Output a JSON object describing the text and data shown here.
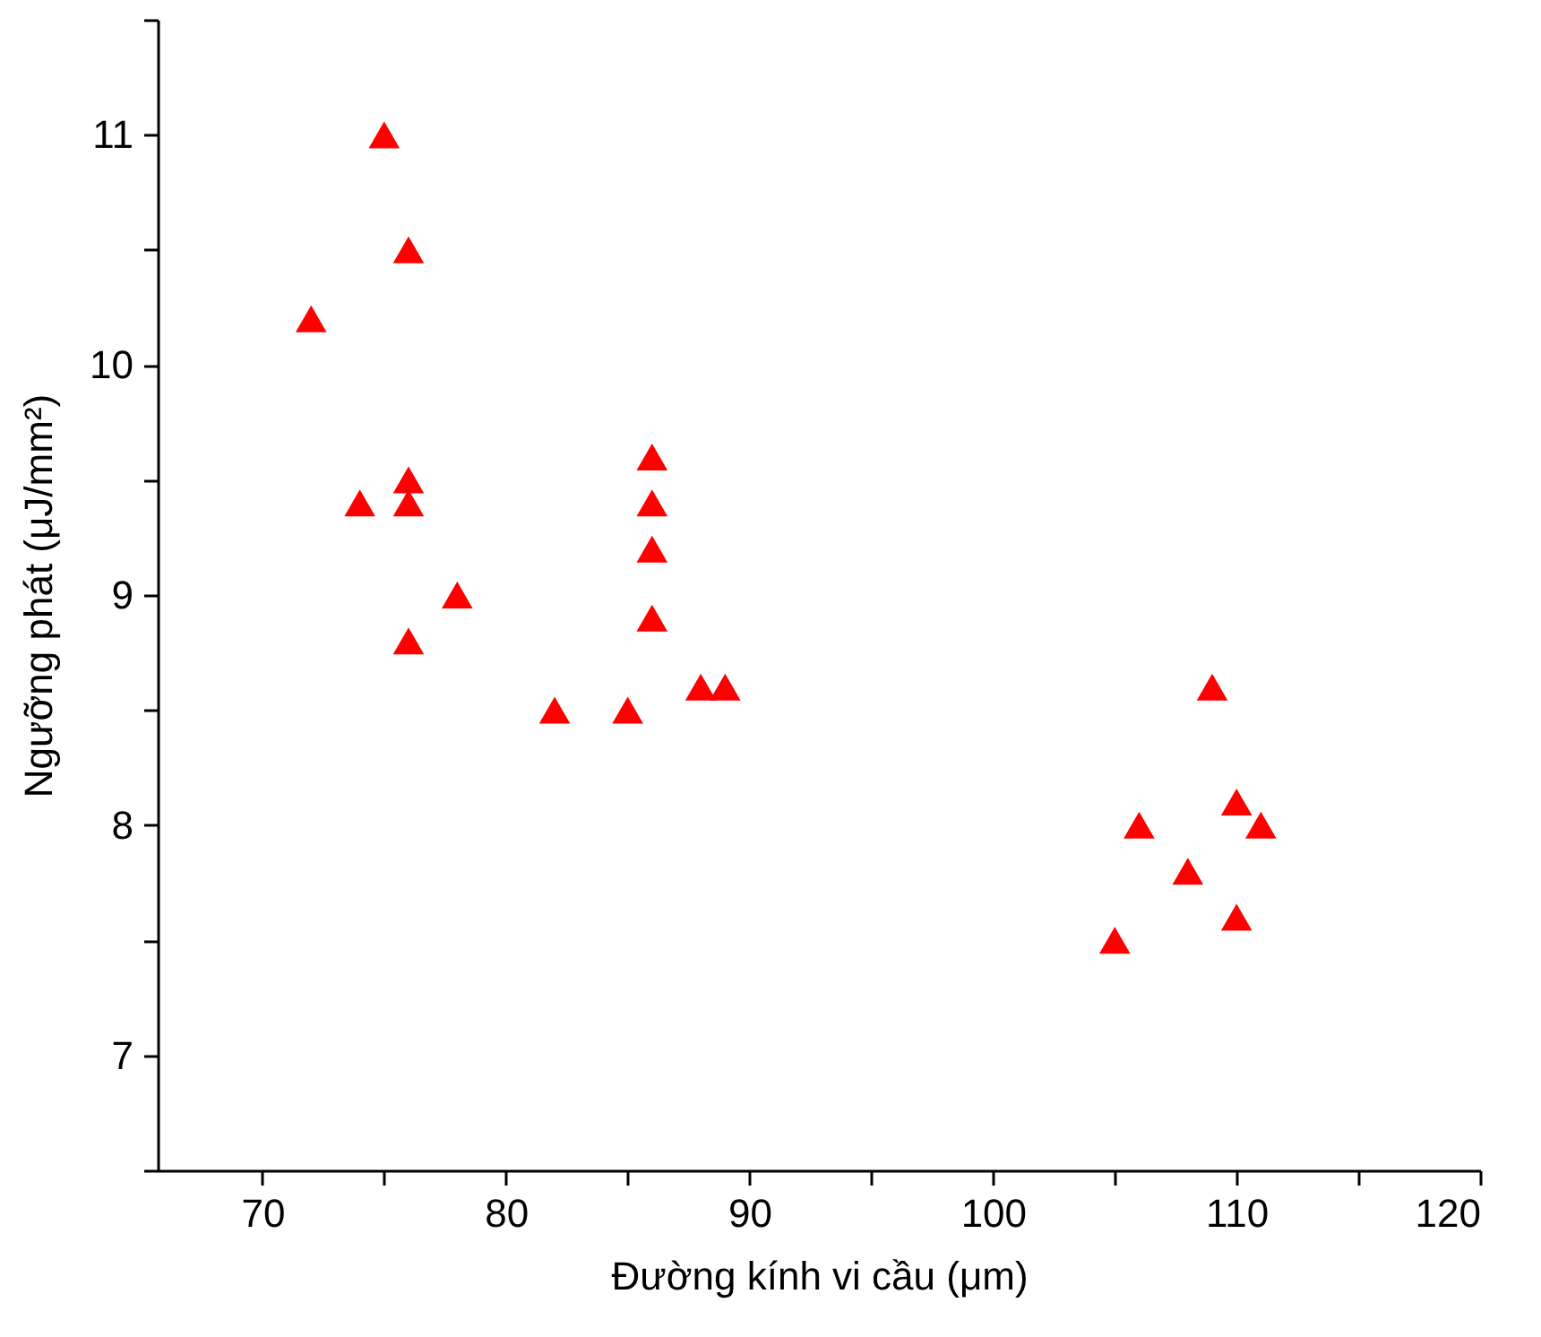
{
  "chart_data": {
    "type": "scatter",
    "xlabel": "Đường kính vi cầu (μm)",
    "ylabel": "Ngưỡng phát (μJ/mm²)",
    "x": [
      72,
      74,
      75,
      76,
      76,
      76,
      76,
      78,
      82,
      85,
      86,
      86,
      86,
      86,
      88,
      89,
      105,
      106,
      108,
      109,
      110,
      110,
      111
    ],
    "series": [
      {
        "color": "#ff0000",
        "values": [
          10.2,
          9.4,
          11.0,
          10.5,
          9.5,
          9.4,
          8.8,
          9.0,
          8.5,
          8.5,
          9.6,
          9.4,
          9.2,
          8.9,
          8.6,
          8.6,
          7.5,
          8.0,
          7.8,
          8.6,
          8.1,
          7.6,
          8.0
        ]
      }
    ],
    "xlim": [
      65.7,
      120
    ],
    "ylim": [
      6.5,
      11.5
    ],
    "xticks": [
      70,
      {
        "value": 75,
        "label": null
      },
      80,
      {
        "value": 85,
        "label": null
      },
      90,
      {
        "value": 95,
        "label": null
      },
      100,
      {
        "value": 105,
        "label": null
      },
      110,
      {
        "value": 115,
        "label": null
      },
      120
    ],
    "yticks": [
      {
        "value": 6.5,
        "label": null
      },
      7,
      {
        "value": 7.5,
        "label": null
      },
      8,
      {
        "value": 8.5,
        "label": null
      },
      9,
      {
        "value": 9.5,
        "label": null
      },
      10,
      {
        "value": 10.5,
        "label": null
      },
      11,
      {
        "value": 11.5,
        "label": null
      }
    ],
    "marker": "triangle",
    "grid": false,
    "legend": false
  }
}
